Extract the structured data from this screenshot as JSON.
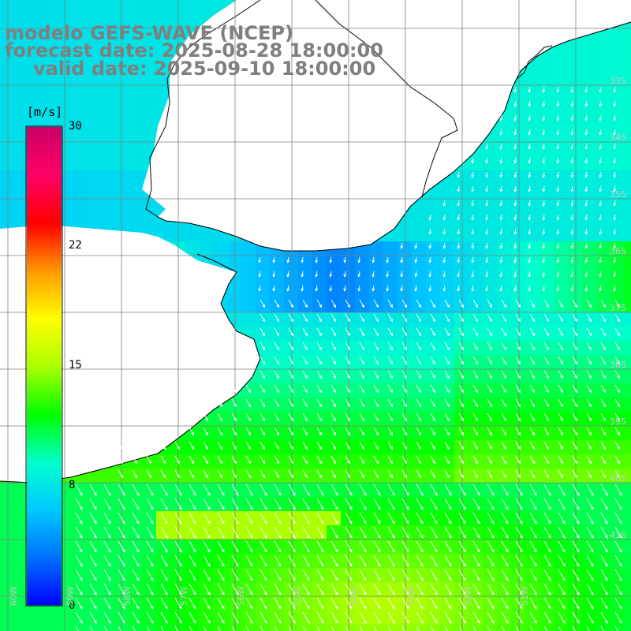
{
  "title": {
    "line1": "modelo GEFS-WAVE (NCEP)",
    "line2": "forecast date: 2025-08-28 18:00:00",
    "line3": "valid date: 2025-09-10 18:00:00"
  },
  "colorbar": {
    "unit": "[m/s]",
    "ticks": [
      "30",
      "22",
      "15",
      "8",
      "0"
    ],
    "colors": [
      "#0000ff",
      "#0070ff",
      "#00c8ff",
      "#00ffcc",
      "#00ff00",
      "#aaff00",
      "#ffff00",
      "#ff9900",
      "#ff0000",
      "#ff0066",
      "#cc0066"
    ]
  },
  "lat_labels": [
    "33S",
    "34S",
    "35S",
    "36S",
    "37S",
    "38S",
    "39S",
    "40S",
    "41S"
  ],
  "lon_labels": [
    "60W",
    "59W",
    "58W",
    "57W",
    "56W",
    "55W",
    "54W",
    "53W",
    "52W",
    "51W"
  ],
  "map": {
    "land_color": "#ffffff",
    "coast_color": "#000000",
    "grid_color": "#7f7f7f",
    "arrow_color": "#ffffff"
  }
}
